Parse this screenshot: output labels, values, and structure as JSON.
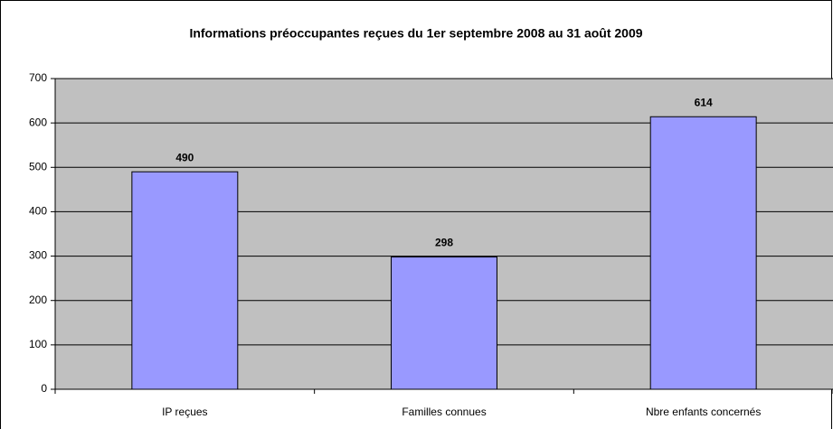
{
  "chart_data": {
    "type": "bar",
    "title": "Informations préoccupantes reçues du 1er septembre 2008 au 31 août 2009",
    "categories": [
      "IP reçues",
      "Familles connues",
      "Nbre enfants concernés"
    ],
    "values": [
      490,
      298,
      614
    ],
    "color": "#9999ff",
    "ylim": [
      0,
      700
    ],
    "yticks": [
      0,
      100,
      200,
      300,
      400,
      500,
      600,
      700
    ],
    "grid": true,
    "data_labels": true
  }
}
